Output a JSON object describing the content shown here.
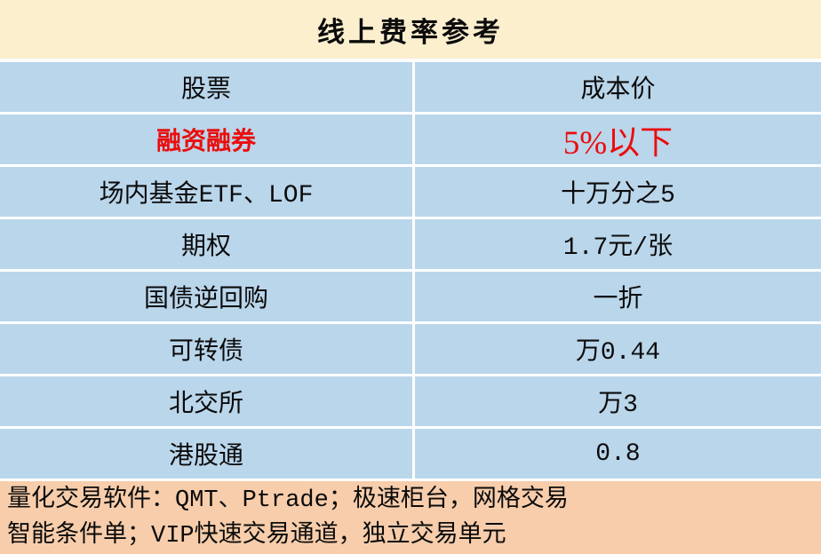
{
  "chart_data": {
    "type": "table",
    "title": "线上费率参考",
    "columns": [
      "股票",
      "成本价"
    ],
    "rows": [
      [
        "融资融券",
        "5%以下"
      ],
      [
        "场内基金ETF、LOF",
        "十万分之5"
      ],
      [
        "期权",
        "1.7元/张"
      ],
      [
        "国债逆回购",
        "一折"
      ],
      [
        "可转债",
        "万0.44"
      ],
      [
        "北交所",
        "万3"
      ],
      [
        "港股通",
        "0.8"
      ]
    ],
    "highlighted_row_index": 0,
    "highlighted_row_label": "融资融券",
    "note_lines": [
      "量化交易软件：QMT、Ptrade；极速柜台，网格交易",
      "智能条件单；VIP快速交易通道，独立交易单元"
    ],
    "layout": {
      "legend": "none",
      "grid": "white dividers between cells",
      "column_alignment": [
        "center",
        "center"
      ]
    }
  },
  "colors": {
    "title_bg": "#FCEFCE",
    "table_bg": "#BAD6EB",
    "footer_bg": "#F7CDAB",
    "highlight_text": "#EA0D0D",
    "text": "#0B0B0B",
    "divider": "#FFFFFF"
  }
}
